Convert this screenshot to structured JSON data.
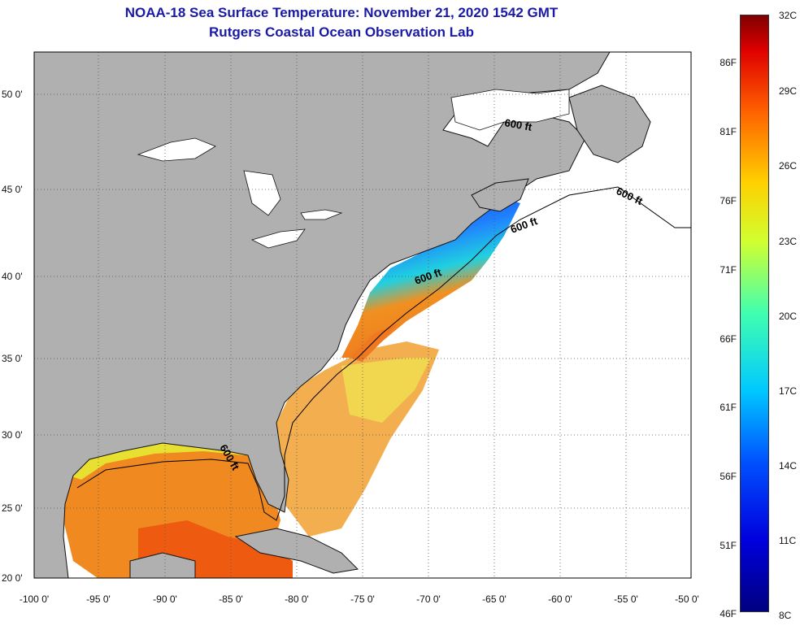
{
  "title": {
    "line1": "NOAA-18 Sea Surface Temperature:  November 21, 2020 1542 GMT",
    "line2": "Rutgers Coastal Ocean Observation Lab"
  },
  "axes": {
    "lat_labels": [
      "50 0'",
      "45 0'",
      "40 0'",
      "35 0'",
      "30 0'",
      "25 0'",
      "20 0'"
    ],
    "lon_labels": [
      "-100 0'",
      "-95 0'",
      "-90 0'",
      "-85 0'",
      "-80 0'",
      "-75 0'",
      "-70 0'",
      "-65 0'",
      "-60 0'",
      "-55 0'",
      "-50 0'"
    ]
  },
  "contour_labels": [
    "600 ft",
    "600 ft",
    "600 ft",
    "600 ft",
    "600 ft"
  ],
  "colorbar": {
    "fahrenheit_labels": [
      "86F",
      "81F",
      "76F",
      "71F",
      "66F",
      "61F",
      "56F",
      "51F",
      "46F"
    ],
    "celsius_labels": [
      "32C",
      "29C",
      "26C",
      "23C",
      "20C",
      "17C",
      "14C",
      "11C",
      "8C"
    ],
    "min_celsius": 8,
    "max_celsius": 32
  },
  "colors": {
    "land": "#b0b0b0",
    "no_data": "#ffffff",
    "title": "#1a1aa6"
  }
}
